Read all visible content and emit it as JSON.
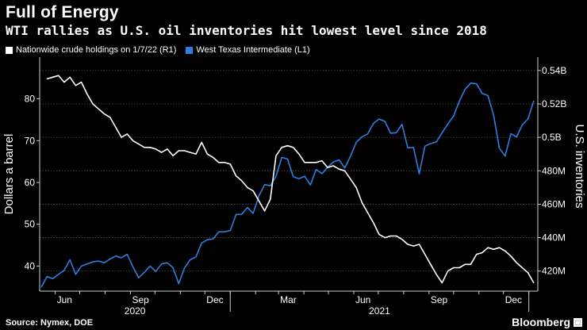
{
  "header": {
    "title": "Full of Energy",
    "subtitle": "WTI rallies as U.S. oil inventories hit lowest level since 2018"
  },
  "footer": {
    "source": "Source: Nymex, DOE",
    "brand": "Bloomberg",
    "brand_mark_icon": "bloomberg-logo-icon"
  },
  "colors": {
    "background": "#000000",
    "crude_line": "#ffffff",
    "wti_line": "#2e7fe0",
    "grid": "#555555",
    "axis": "#cfcfcf"
  },
  "chart_data": {
    "type": "line",
    "xlabel": "",
    "x_tick_labels": [
      "Jun",
      "Sep",
      "Dec",
      "Mar",
      "Jun",
      "Sep",
      "Dec"
    ],
    "x_year_labels": [
      "2020",
      "2021"
    ],
    "y_left": {
      "label": "Dollars a barrel",
      "lim": [
        34,
        90
      ],
      "ticks": [
        40,
        50,
        60,
        70,
        80
      ],
      "tick_labels": [
        "40",
        "50",
        "60",
        "70",
        "80"
      ]
    },
    "y_right": {
      "label": "U.S. inventories",
      "lim": [
        408,
        548
      ],
      "ticks": [
        420,
        440,
        460,
        480,
        500,
        520,
        540
      ],
      "tick_labels": [
        "420M",
        "440M",
        "460M",
        "480M",
        "0.5B",
        "0.52B",
        "0.54B"
      ]
    },
    "legend_position": "top-left",
    "grid": true,
    "series": [
      {
        "name": "Nationwide crude holdings on 1/7/22 (R1)",
        "axis": "right",
        "x": [
          "2020-05-22",
          "2020-05-29",
          "2020-06-05",
          "2020-06-12",
          "2020-06-19",
          "2020-06-26",
          "2020-07-03",
          "2020-07-10",
          "2020-07-17",
          "2020-07-24",
          "2020-07-31",
          "2020-08-07",
          "2020-08-14",
          "2020-08-21",
          "2020-08-28",
          "2020-09-04",
          "2020-09-11",
          "2020-09-18",
          "2020-09-25",
          "2020-10-02",
          "2020-10-09",
          "2020-10-16",
          "2020-10-23",
          "2020-10-30",
          "2020-11-06",
          "2020-11-13",
          "2020-11-20",
          "2020-11-27",
          "2020-12-04",
          "2020-12-11",
          "2020-12-18",
          "2020-12-25",
          "2021-01-01",
          "2021-01-08",
          "2021-01-15",
          "2021-01-22",
          "2021-01-29",
          "2021-02-05",
          "2021-02-12",
          "2021-02-19",
          "2021-02-26",
          "2021-03-05",
          "2021-03-12",
          "2021-03-19",
          "2021-03-26",
          "2021-04-02",
          "2021-04-09",
          "2021-04-16",
          "2021-04-23",
          "2021-04-30",
          "2021-05-07",
          "2021-05-14",
          "2021-05-21",
          "2021-05-28",
          "2021-06-04",
          "2021-06-11",
          "2021-06-18",
          "2021-06-25",
          "2021-07-02",
          "2021-07-09",
          "2021-07-16",
          "2021-07-23",
          "2021-07-30",
          "2021-08-06",
          "2021-08-13",
          "2021-08-20",
          "2021-08-27",
          "2021-09-03",
          "2021-09-10",
          "2021-09-17",
          "2021-09-24",
          "2021-10-01",
          "2021-10-08",
          "2021-10-15",
          "2021-10-22",
          "2021-10-29",
          "2021-11-05",
          "2021-11-12",
          "2021-11-19",
          "2021-11-26",
          "2021-12-03",
          "2021-12-10",
          "2021-12-17",
          "2021-12-24",
          "2021-12-31",
          "2022-01-07"
        ],
        "values": [
          535,
          536,
          537,
          533,
          536,
          531,
          533,
          526,
          520,
          517,
          514,
          512,
          506,
          500,
          502,
          498,
          496,
          494,
          494,
          493,
          491,
          493,
          489,
          492,
          492,
          491,
          490,
          497,
          490,
          488,
          485,
          485,
          484,
          477,
          474,
          470,
          468,
          462,
          456,
          463,
          489,
          494,
          495,
          494,
          490,
          485,
          485,
          485,
          486,
          482,
          483,
          481,
          480,
          475,
          470,
          461,
          455,
          449,
          442,
          440,
          441,
          441,
          439,
          436,
          435,
          436,
          430,
          424,
          418,
          413,
          420,
          422,
          422,
          424,
          424,
          430,
          431,
          434,
          433,
          434,
          432,
          429,
          425,
          422,
          419,
          413
        ]
      },
      {
        "name": "West Texas Intermediate (L1)",
        "axis": "left",
        "x": [
          "2020-05-15",
          "2020-05-22",
          "2020-05-29",
          "2020-06-05",
          "2020-06-12",
          "2020-06-19",
          "2020-06-26",
          "2020-07-03",
          "2020-07-10",
          "2020-07-17",
          "2020-07-24",
          "2020-07-31",
          "2020-08-07",
          "2020-08-14",
          "2020-08-21",
          "2020-08-28",
          "2020-09-04",
          "2020-09-11",
          "2020-09-18",
          "2020-09-25",
          "2020-10-02",
          "2020-10-09",
          "2020-10-16",
          "2020-10-23",
          "2020-10-30",
          "2020-11-06",
          "2020-11-13",
          "2020-11-20",
          "2020-11-27",
          "2020-12-04",
          "2020-12-11",
          "2020-12-18",
          "2020-12-25",
          "2021-01-01",
          "2021-01-08",
          "2021-01-15",
          "2021-01-22",
          "2021-01-29",
          "2021-02-05",
          "2021-02-12",
          "2021-02-19",
          "2021-02-26",
          "2021-03-05",
          "2021-03-12",
          "2021-03-19",
          "2021-03-26",
          "2021-04-02",
          "2021-04-09",
          "2021-04-16",
          "2021-04-23",
          "2021-04-30",
          "2021-05-07",
          "2021-05-14",
          "2021-05-21",
          "2021-05-28",
          "2021-06-04",
          "2021-06-11",
          "2021-06-18",
          "2021-06-25",
          "2021-07-02",
          "2021-07-09",
          "2021-07-16",
          "2021-07-23",
          "2021-07-30",
          "2021-08-06",
          "2021-08-13",
          "2021-08-20",
          "2021-08-27",
          "2021-09-03",
          "2021-09-10",
          "2021-09-17",
          "2021-09-24",
          "2021-10-01",
          "2021-10-08",
          "2021-10-15",
          "2021-10-22",
          "2021-10-29",
          "2021-11-05",
          "2021-11-12",
          "2021-11-19",
          "2021-11-26",
          "2021-12-03",
          "2021-12-10",
          "2021-12-17",
          "2021-12-24",
          "2021-12-31",
          "2022-01-07"
        ],
        "values": [
          35,
          37.5,
          37,
          38,
          39,
          41.5,
          38,
          40,
          40.5,
          41,
          41.2,
          40.8,
          41.7,
          42.4,
          42,
          42.8,
          39.8,
          37.2,
          38.5,
          40,
          38.7,
          40.5,
          40.8,
          39.6,
          35.8,
          39.5,
          41.5,
          42.2,
          45.5,
          46.3,
          46.5,
          48.2,
          48.2,
          48.5,
          52.3,
          52.4,
          54,
          52.6,
          56.8,
          59.5,
          59.2,
          61.5,
          66,
          65.6,
          61.4,
          60.9,
          61.5,
          59.4,
          63.1,
          62.1,
          63.6,
          64.9,
          65.4,
          63.5,
          66.3,
          69.6,
          70.9,
          71.6,
          74.1,
          75.2,
          74.6,
          71.8,
          71.9,
          73.9,
          68.3,
          68.4,
          62.1,
          68.7,
          69.3,
          69.7,
          71.9,
          74,
          75.9,
          79.4,
          82.3,
          83.8,
          83.6,
          81.3,
          80.8,
          76.1,
          68.2,
          66.3,
          71.7,
          70.9,
          73.8,
          75.2,
          79.5
        ]
      }
    ]
  }
}
